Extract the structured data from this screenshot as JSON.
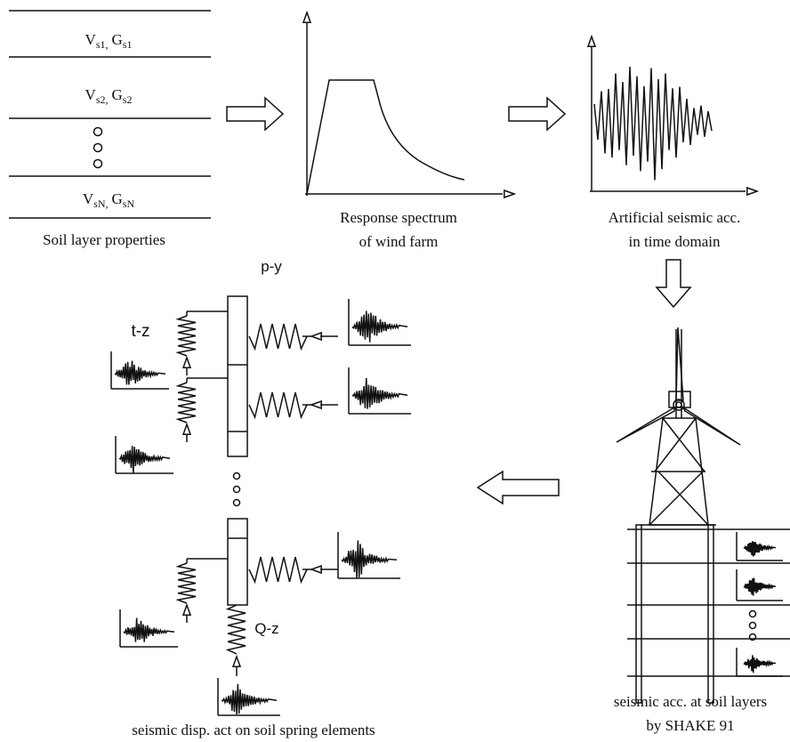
{
  "soil_layers": {
    "layers": [
      {
        "v": "V",
        "v_sub": "s1,",
        "g": "G",
        "g_sub": "s1"
      },
      {
        "v": "V",
        "v_sub": "s2,",
        "g": "G",
        "g_sub": "s2"
      },
      {
        "v": "V",
        "v_sub": "sN,",
        "g": "G",
        "g_sub": "sN"
      }
    ],
    "caption": "Soil layer properties"
  },
  "response_spectrum": {
    "caption": [
      "Response spectrum",
      "of wind farm"
    ]
  },
  "artificial_acc": {
    "caption": [
      "Artificial seismic acc.",
      "in time domain"
    ]
  },
  "spring_model": {
    "labels": {
      "p_y": "p-y",
      "t_z": "t-z",
      "q_z": "Q-z"
    },
    "caption": "seismic disp. act on soil spring elements"
  },
  "turbine": {
    "caption": [
      "seismic acc. at soil layers",
      "by SHAKE 91"
    ]
  }
}
